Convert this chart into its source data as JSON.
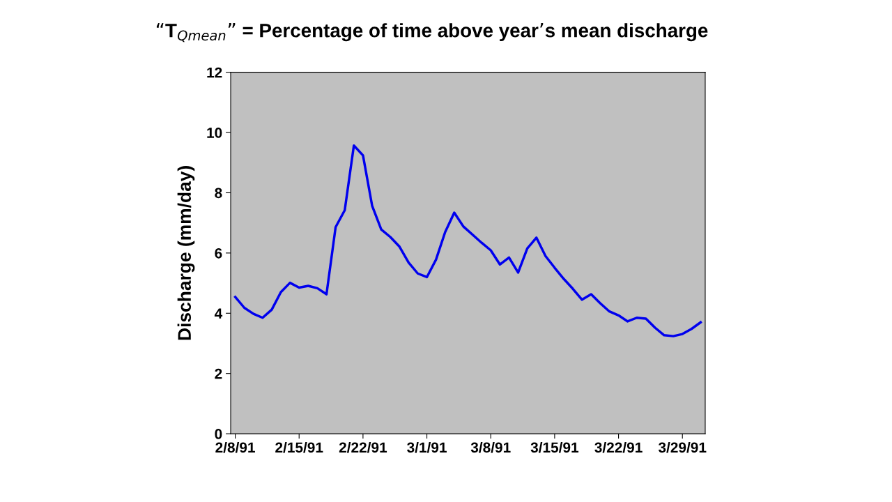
{
  "chart_data": {
    "type": "line",
    "title": "“T$_{Qmean}$” = Percentage of time above year’s mean discharge",
    "ylabel": "Discharge (mm/day)",
    "x": [
      "1991-02-08",
      "1991-02-09",
      "1991-02-10",
      "1991-02-11",
      "1991-02-12",
      "1991-02-13",
      "1991-02-14",
      "1991-02-15",
      "1991-02-16",
      "1991-02-17",
      "1991-02-18",
      "1991-02-19",
      "1991-02-20",
      "1991-02-21",
      "1991-02-22",
      "1991-02-23",
      "1991-02-24",
      "1991-02-25",
      "1991-02-26",
      "1991-02-27",
      "1991-02-28",
      "1991-03-01",
      "1991-03-02",
      "1991-03-03",
      "1991-03-04",
      "1991-03-05",
      "1991-03-06",
      "1991-03-07",
      "1991-03-08",
      "1991-03-09",
      "1991-03-10",
      "1991-03-11",
      "1991-03-12",
      "1991-03-13",
      "1991-03-14",
      "1991-03-15",
      "1991-03-16",
      "1991-03-17",
      "1991-03-18",
      "1991-03-19",
      "1991-03-20",
      "1991-03-21",
      "1991-03-22",
      "1991-03-23",
      "1991-03-24",
      "1991-03-25",
      "1991-03-26",
      "1991-03-27",
      "1991-03-28",
      "1991-03-29",
      "1991-03-30",
      "1991-03-31"
    ],
    "series": [
      {
        "color": "#0000ee",
        "values": [
          4.54,
          4.18,
          3.98,
          3.85,
          4.12,
          4.7,
          5.01,
          4.85,
          4.91,
          4.83,
          4.63,
          6.86,
          7.42,
          9.57,
          9.24,
          7.57,
          6.78,
          6.53,
          6.21,
          5.68,
          5.32,
          5.2,
          5.78,
          6.69,
          7.34,
          6.88,
          6.61,
          6.34,
          6.09,
          5.62,
          5.85,
          5.35,
          6.15,
          6.51,
          5.9,
          5.51,
          5.14,
          4.81,
          4.45,
          4.63,
          4.33,
          4.06,
          3.93,
          3.73,
          3.85,
          3.82,
          3.52,
          3.27,
          3.24,
          3.31,
          3.48,
          3.7
        ]
      }
    ],
    "xlim": [
      "1991-02-07T12:00",
      "1991-03-31T12:00"
    ],
    "xticks": [
      {
        "value": "1991-02-08",
        "label": "2/8/91"
      },
      {
        "value": "1991-02-15",
        "label": "2/15/91"
      },
      {
        "value": "1991-02-22",
        "label": "2/22/91"
      },
      {
        "value": "1991-03-01",
        "label": "3/1/91"
      },
      {
        "value": "1991-03-08",
        "label": "3/8/91"
      },
      {
        "value": "1991-03-15",
        "label": "3/15/91"
      },
      {
        "value": "1991-03-22",
        "label": "3/22/91"
      },
      {
        "value": "1991-03-29",
        "label": "3/29/91"
      }
    ],
    "ylim": [
      0,
      12
    ],
    "yticks": [
      0,
      2,
      4,
      6,
      8,
      10,
      12
    ],
    "grid": false,
    "legend": false,
    "marker": "none",
    "line_style": "solid"
  }
}
